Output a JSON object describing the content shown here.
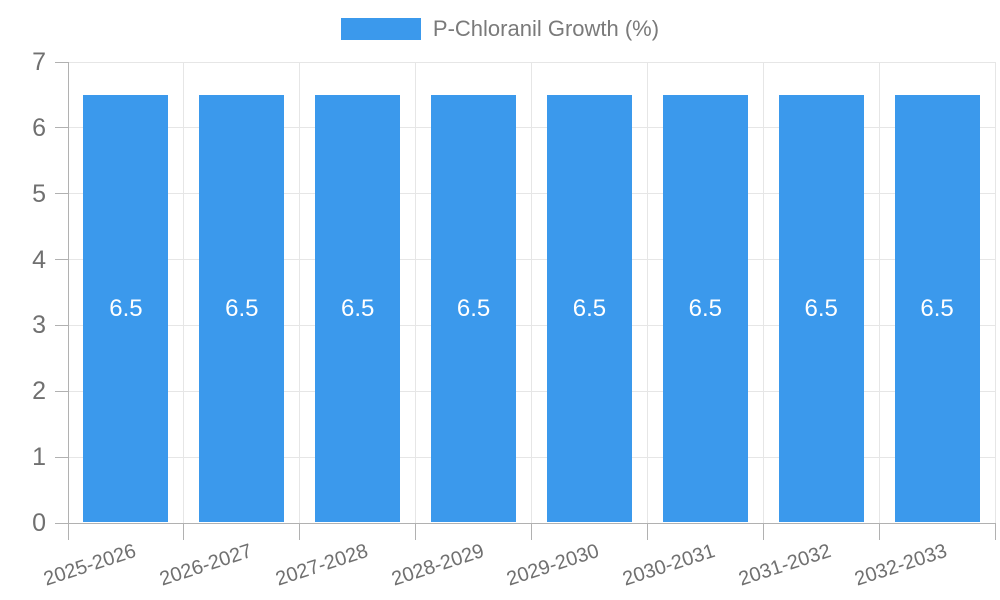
{
  "chart_data": {
    "type": "bar",
    "title": "",
    "legend": "P-Chloranil Growth (%)",
    "categories": [
      "2025-2026",
      "2026-2027",
      "2027-2028",
      "2028-2029",
      "2029-2030",
      "2030-2031",
      "2031-2032",
      "2032-2033"
    ],
    "values": [
      6.5,
      6.5,
      6.5,
      6.5,
      6.5,
      6.5,
      6.5,
      6.5
    ],
    "bar_value_labels": [
      "6.5",
      "6.5",
      "6.5",
      "6.5",
      "6.5",
      "6.5",
      "6.5",
      "6.5"
    ],
    "xlabel": "",
    "ylabel": "",
    "ylim": [
      0,
      7
    ],
    "y_ticks": [
      0,
      1,
      2,
      3,
      4,
      5,
      6,
      7
    ],
    "grid": true,
    "legend_position": "top",
    "x_tick_rotation_deg": -18,
    "colors": {
      "bar": "#3B99EC",
      "bar_label": "#FFFFFF",
      "grid": "#E6E6E6",
      "axis": "#B1B1B1",
      "tick_label": "#707070",
      "legend_text": "#7A7A7A",
      "background": "#FFFFFF"
    }
  }
}
